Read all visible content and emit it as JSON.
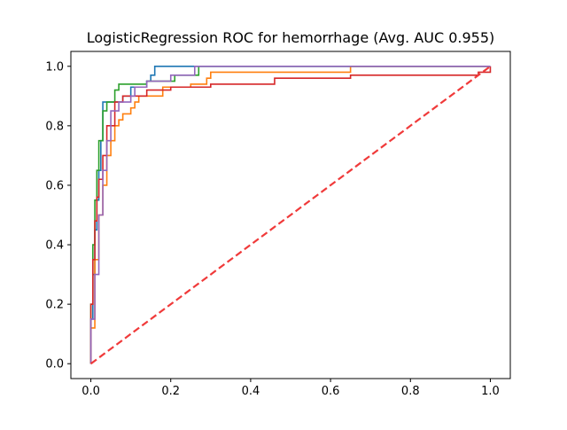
{
  "chart_data": {
    "type": "line",
    "title": "LogisticRegression ROC for hemorrhage (Avg. AUC 0.955)",
    "xlabel": "",
    "ylabel": "",
    "xlim": [
      -0.05,
      1.05
    ],
    "ylim": [
      -0.05,
      1.05
    ],
    "x_ticks": [
      0.0,
      0.2,
      0.4,
      0.6,
      0.8,
      1.0
    ],
    "y_ticks": [
      0.0,
      0.2,
      0.4,
      0.6,
      0.8,
      1.0
    ],
    "x_tick_labels": [
      "0.0",
      "0.2",
      "0.4",
      "0.6",
      "0.8",
      "1.0"
    ],
    "y_tick_labels": [
      "0.0",
      "0.2",
      "0.4",
      "0.6",
      "0.8",
      "1.0"
    ],
    "grid": false,
    "legend": "none",
    "series": [
      {
        "color": "#1f77b4",
        "step": true,
        "x": [
          0.0,
          0.0,
          0.005,
          0.01,
          0.015,
          0.02,
          0.025,
          0.03,
          0.04,
          0.06,
          0.08,
          0.1,
          0.11,
          0.14,
          0.15,
          0.16,
          0.27,
          1.0
        ],
        "y": [
          0.0,
          0.15,
          0.3,
          0.45,
          0.55,
          0.65,
          0.75,
          0.88,
          0.88,
          0.88,
          0.9,
          0.93,
          0.93,
          0.95,
          0.97,
          1.0,
          1.0,
          1.0
        ]
      },
      {
        "color": "#ff7f0e",
        "step": true,
        "x": [
          0.0,
          0.0,
          0.01,
          0.02,
          0.03,
          0.04,
          0.05,
          0.06,
          0.07,
          0.08,
          0.1,
          0.11,
          0.12,
          0.18,
          0.2,
          0.25,
          0.29,
          0.3,
          0.64,
          0.65,
          1.0
        ],
        "y": [
          0.0,
          0.12,
          0.35,
          0.5,
          0.6,
          0.7,
          0.75,
          0.8,
          0.82,
          0.84,
          0.86,
          0.88,
          0.9,
          0.93,
          0.93,
          0.94,
          0.96,
          0.98,
          0.98,
          1.0,
          1.0
        ]
      },
      {
        "color": "#2ca02c",
        "step": true,
        "x": [
          0.0,
          0.0,
          0.005,
          0.01,
          0.015,
          0.02,
          0.03,
          0.04,
          0.05,
          0.06,
          0.07,
          0.14,
          0.21,
          0.27,
          1.0
        ],
        "y": [
          0.0,
          0.2,
          0.4,
          0.55,
          0.65,
          0.75,
          0.85,
          0.88,
          0.88,
          0.92,
          0.94,
          0.95,
          0.97,
          1.0,
          1.0
        ]
      },
      {
        "color": "#d62728",
        "step": true,
        "x": [
          0.0,
          0.0,
          0.005,
          0.01,
          0.015,
          0.02,
          0.03,
          0.04,
          0.06,
          0.07,
          0.08,
          0.1,
          0.14,
          0.2,
          0.3,
          0.46,
          0.65,
          0.97,
          1.0
        ],
        "y": [
          0.0,
          0.2,
          0.35,
          0.48,
          0.56,
          0.62,
          0.7,
          0.8,
          0.88,
          0.88,
          0.9,
          0.9,
          0.92,
          0.93,
          0.94,
          0.96,
          0.97,
          0.98,
          1.0
        ]
      },
      {
        "color": "#9467bd",
        "step": true,
        "x": [
          0.0,
          0.0,
          0.01,
          0.02,
          0.03,
          0.04,
          0.05,
          0.07,
          0.08,
          0.1,
          0.11,
          0.14,
          0.2,
          0.26,
          1.0
        ],
        "y": [
          0.0,
          0.15,
          0.3,
          0.5,
          0.65,
          0.75,
          0.85,
          0.88,
          0.88,
          0.9,
          0.93,
          0.95,
          0.97,
          1.0,
          1.0
        ]
      },
      {
        "color": "#f03a3a",
        "dashed": true,
        "x": [
          0.0,
          1.0
        ],
        "y": [
          0.0,
          1.0
        ]
      }
    ]
  }
}
